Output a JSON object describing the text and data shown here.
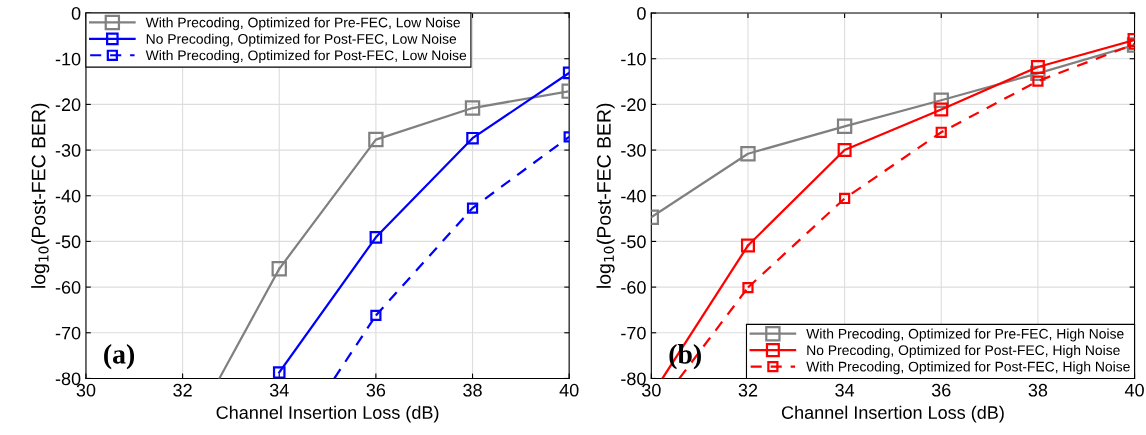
{
  "chart_data": [
    {
      "type": "line",
      "xlabel": "Channel Insertion Loss (dB)",
      "ylabel": "log$_{10}$(Post-FEC BER)",
      "xlim": [
        30,
        40
      ],
      "ylim": [
        -80,
        0
      ],
      "xticks": [
        30,
        32,
        34,
        36,
        38,
        40
      ],
      "yticks": [
        -80,
        -70,
        -60,
        -50,
        -40,
        -30,
        -20,
        -10,
        0
      ],
      "grid": true,
      "legend": "top left",
      "annotations": [
        "(a)"
      ],
      "series": [
        {
          "name": "With Precoding, Optimized for Pre-FEC, Low Noise",
          "color": "#808080",
          "marker": "square",
          "line_style": "solid",
          "x": [
            34,
            36,
            38,
            40
          ],
          "values": [
            -56.0,
            -27.7,
            -20.8,
            -17.1
          ]
        },
        {
          "color": "#808080",
          "marker": "none",
          "line_style": "solid",
          "x": [
            32.76,
            34
          ],
          "values": [
            -80,
            -56.0
          ]
        },
        {
          "name": "No Precoding, Optimized for Post-FEC, Low Noise",
          "color": "#0000ff",
          "marker": "square",
          "line_style": "solid",
          "x": [
            34,
            36,
            38,
            40
          ],
          "values": [
            -78.7,
            -49.1,
            -27.4,
            -13.1
          ]
        },
        {
          "name": "With Precoding, Optimized for Post-FEC, Low Noise",
          "color": "#0000ff",
          "marker": "square",
          "line_style": "dashed",
          "x": [
            36,
            38,
            40
          ],
          "values": [
            -66.2,
            -42.7,
            -27.1
          ]
        },
        {
          "color": "#0000ff",
          "marker": "none",
          "line_style": "dashed",
          "x": [
            35.14,
            36
          ],
          "values": [
            -80,
            -66.2
          ]
        }
      ]
    },
    {
      "type": "line",
      "xlabel": "Channel Insertion Loss (dB)",
      "ylabel": "log$_{10}$(Post-FEC BER)",
      "xlim": [
        30,
        40
      ],
      "ylim": [
        -80,
        0
      ],
      "xticks": [
        30,
        32,
        34,
        36,
        38,
        40
      ],
      "yticks": [
        -80,
        -70,
        -60,
        -50,
        -40,
        -30,
        -20,
        -10,
        0
      ],
      "grid": true,
      "legend": "bottom right",
      "annotations": [
        "(b)"
      ],
      "series": [
        {
          "name": "With Precoding, Optimized for Pre-FEC, High Noise",
          "color": "#808080",
          "marker": "square",
          "line_style": "solid",
          "x": [
            30,
            32,
            34,
            36,
            38,
            40
          ],
          "values": [
            -44.7,
            -30.8,
            -24.8,
            -19.1,
            -13.2,
            -7.0
          ]
        },
        {
          "name": "No Precoding, Optimized for Post-FEC, High Noise",
          "color": "#ff0000",
          "marker": "square",
          "line_style": "solid",
          "x": [
            32,
            34,
            36,
            38,
            40
          ],
          "values": [
            -50.9,
            -30.0,
            -21.1,
            -11.8,
            -5.9
          ]
        },
        {
          "color": "#ff0000",
          "marker": "none",
          "line_style": "solid",
          "x": [
            30.23,
            32
          ],
          "values": [
            -80,
            -50.9
          ]
        },
        {
          "name": "With Precoding, Optimized for Post-FEC, High Noise",
          "color": "#ff0000",
          "marker": "square",
          "line_style": "dashed",
          "x": [
            32,
            34,
            36,
            38,
            40
          ],
          "values": [
            -60.1,
            -40.6,
            -26.1,
            -14.9,
            -6.8
          ]
        },
        {
          "color": "#ff0000",
          "marker": "none",
          "line_style": "dashed",
          "x": [
            30.58,
            32
          ],
          "values": [
            -80,
            -60.1
          ]
        }
      ]
    }
  ]
}
